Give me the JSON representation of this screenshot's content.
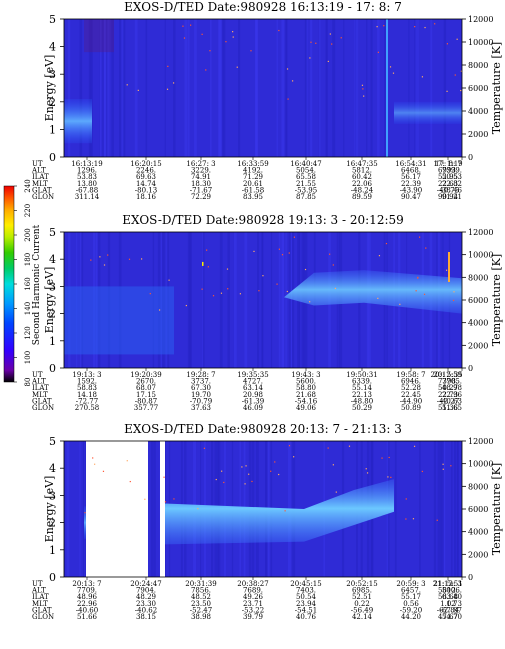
{
  "colorbar": {
    "label": "Second Harmonic Current",
    "ticks": [
      "80",
      "100",
      "120",
      "140",
      "160",
      "180",
      "200",
      "220",
      "240"
    ],
    "colors": [
      "#000000",
      "#6a00a8",
      "#3300ff",
      "#0033ff",
      "#0077ff",
      "#00aaff",
      "#00dddd",
      "#00cc77",
      "#33cc00",
      "#bbee00",
      "#ffee00",
      "#ffaa00",
      "#ff5500",
      "#ee0000"
    ]
  },
  "chart_data": [
    {
      "type": "heatmap",
      "title": "EXOS-D/TED   Date:980928  16:13:19 - 17: 8: 7",
      "ylabel": "Energy [eV]",
      "ylabel_right": "Temperature [K]",
      "ylim": [
        0,
        5
      ],
      "ylim_right": [
        0,
        12000
      ],
      "yticks": [
        "0",
        "1",
        "2",
        "3",
        "4",
        "5"
      ],
      "yticks_right": [
        "0",
        "2000",
        "4000",
        "6000",
        "8000",
        "10000",
        "12000"
      ],
      "row_labels": [
        "UT",
        "ALT",
        "ILAT",
        "MLT",
        "GLAT",
        "GLON"
      ],
      "columns": [
        [
          "16:13:19",
          "1296.",
          "53.83",
          "13.80",
          "-67.88",
          "311.14"
        ],
        [
          "16:20:15",
          "2246.",
          "69.63",
          "14.74",
          "-80.13",
          "18.16"
        ],
        [
          "16:27: 3",
          "3229.",
          "74.91",
          "18.30",
          "-71.67",
          "72.29"
        ],
        [
          "16:33:59",
          "4192.",
          "71.29",
          "20.61",
          "-61.58",
          "83.95"
        ],
        [
          "16:40:47",
          "5054.",
          "65.58",
          "21.55",
          "-53.95",
          "87.85"
        ],
        [
          "16:47:35",
          "5812.",
          "60.42",
          "22.06",
          "-48.24",
          "89.59"
        ],
        [
          "16:54:31",
          "6468.",
          "56.17",
          "22.39",
          "-43.90",
          "90.47"
        ],
        [
          "17: 1:19",
          "6993.",
          "52.95",
          "22.63",
          "-40.75",
          "90.94"
        ],
        [
          "17: 8: 7",
          "7399.",
          "50.53",
          "22.82",
          "-38.46",
          "91.21"
        ]
      ]
    },
    {
      "type": "heatmap",
      "title": "EXOS-D/TED   Date:980928  19:13: 3 - 20:12:59",
      "ylabel": "Energy [eV]",
      "ylabel_right": "Temperature [K]",
      "ylim": [
        0,
        5
      ],
      "ylim_right": [
        0,
        12000
      ],
      "yticks": [
        "0",
        "1",
        "2",
        "3",
        "4",
        "5"
      ],
      "yticks_right": [
        "0",
        "2000",
        "4000",
        "6000",
        "8000",
        "10000",
        "12000"
      ],
      "row_labels": [
        "UT",
        "ALT",
        "ILAT",
        "MLT",
        "GLAT",
        "GLON"
      ],
      "columns": [
        [
          "19:13: 3",
          "1592.",
          "58.83",
          "14.18",
          "-72.77",
          "270.58"
        ],
        [
          "19:20:39",
          "2670.",
          "68.07",
          "17.15",
          "-80.87",
          "357.77"
        ],
        [
          "19:28: 7",
          "3737.",
          "67.30",
          "19.70",
          "-70.79",
          "37.63"
        ],
        [
          "19:35:35",
          "4727.",
          "63.14",
          "20.98",
          "-61.39",
          "46.09"
        ],
        [
          "19:43: 3",
          "5600.",
          "58.80",
          "21.68",
          "-54.16",
          "49.06"
        ],
        [
          "19:50:31",
          "6339.",
          "55.14",
          "22.13",
          "-48.80",
          "50.29"
        ],
        [
          "19:58: 7",
          "6946.",
          "52.28",
          "22.45",
          "-44.90",
          "50.89"
        ],
        [
          "20: 5:35",
          "7398.",
          "50.27",
          "22.73",
          "-42.27",
          "51.36"
        ],
        [
          "20:12:59",
          "7705.",
          "48.98",
          "22.96",
          "-40.63",
          "51.65"
        ]
      ]
    },
    {
      "type": "heatmap",
      "title": "EXOS-D/TED   Date:980928  20:13: 7 - 21:13: 3",
      "ylabel": "Energy [eV]",
      "ylabel_right": "Temperature [K]",
      "ylim": [
        0,
        5
      ],
      "ylim_right": [
        0,
        12000
      ],
      "yticks": [
        "0",
        "1",
        "2",
        "3",
        "4",
        "5"
      ],
      "yticks_right": [
        "0",
        "2000",
        "4000",
        "6000",
        "8000",
        "10000",
        "12000"
      ],
      "row_labels": [
        "UT",
        "ALT",
        "ILAT",
        "MLT",
        "GLAT",
        "GLON"
      ],
      "columns": [
        [
          "20:13: 7",
          "7709.",
          "48.96",
          "22.96",
          "-40.60",
          "51.66"
        ],
        [
          "20:24:47",
          "7904.",
          "48.29",
          "23.30",
          "-40.62",
          "38.15"
        ],
        [
          "20:31:39",
          "7856.",
          "48.52",
          "23.50",
          "-52.47",
          "38.98"
        ],
        [
          "20:38:27",
          "7689.",
          "49.26",
          "23.71",
          "-53.22",
          "39.79"
        ],
        [
          "20:45:15",
          "7403.",
          "50.54",
          "23.94",
          "-54.51",
          "40.76"
        ],
        [
          "20:52:15",
          "6985.",
          "52.51",
          "0.22",
          "-56.49",
          "42.14"
        ],
        [
          "20:59: 3",
          "6457.",
          "55.17",
          "0.56",
          "-59.20",
          "44.20"
        ],
        [
          "21: 5:51",
          "5812.",
          "58.68",
          "1.02",
          "-62.84",
          "47.67"
        ],
        [
          "21:13: 3",
          "5006.",
          "63.40",
          "1.73",
          "-67.87",
          "54.70"
        ]
      ]
    }
  ]
}
